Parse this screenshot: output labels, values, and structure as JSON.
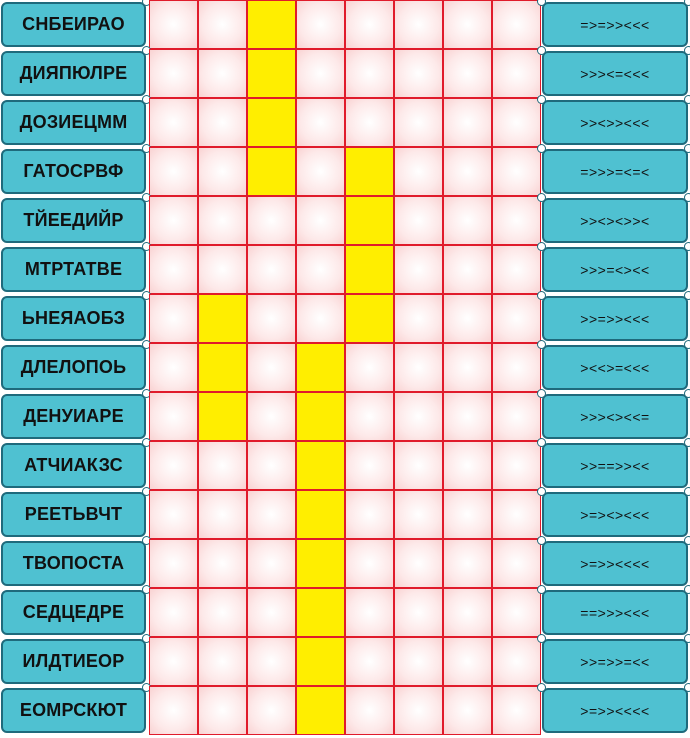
{
  "colors": {
    "card_fill": "#4fc1d1",
    "card_border": "#1f6a7c",
    "grid_line": "#e01b2b",
    "cell_fill": "#fde9e9",
    "highlight": "#ffee00"
  },
  "grid": {
    "columns": 8,
    "rows": [
      {
        "word": "СНБЕИРАО",
        "pattern": "=>=>><<<",
        "filled": [
          2
        ]
      },
      {
        "word": "ДИЯПЮЛРЕ",
        "pattern": ">>><=<<<",
        "filled": [
          2
        ]
      },
      {
        "word": "ДОЗИЕЦММ",
        "pattern": ">><>><<<",
        "filled": [
          2
        ]
      },
      {
        "word": "ГАТОСРВФ",
        "pattern": "=>>>=<=<",
        "filled": [
          2,
          4
        ]
      },
      {
        "word": "ТЙЕЕДИЙР",
        "pattern": ">><><>><",
        "filled": [
          4
        ]
      },
      {
        "word": "МТРТАТВЕ",
        "pattern": ">>>=<><<",
        "filled": [
          4
        ]
      },
      {
        "word": "ЬНЕЯАОБЗ",
        "pattern": ">>=>><<<",
        "filled": [
          1,
          4
        ]
      },
      {
        "word": "ДЛЕЛОПОЬ",
        "pattern": "><<>=<<<",
        "filled": [
          1,
          3
        ]
      },
      {
        "word": "ДЕНУИАРЕ",
        "pattern": ">>><><<=",
        "filled": [
          1,
          3
        ]
      },
      {
        "word": "АТЧИАКЗС",
        "pattern": ">>==>><<",
        "filled": [
          3
        ]
      },
      {
        "word": "РЕЕТЬВЧТ",
        "pattern": ">=><><<<",
        "filled": [
          3
        ]
      },
      {
        "word": "ТВОПОСТА",
        "pattern": ">=>><<<<",
        "filled": [
          3
        ]
      },
      {
        "word": "СЕДЦЕДРЕ",
        "pattern": "==>>><<<",
        "filled": [
          3
        ]
      },
      {
        "word": "ИЛДТИЕОР",
        "pattern": ">>=>>=<<",
        "filled": [
          3
        ]
      },
      {
        "word": "ЕОМРСКЮТ",
        "pattern": ">=>><<<<",
        "filled": [
          3
        ]
      }
    ]
  }
}
